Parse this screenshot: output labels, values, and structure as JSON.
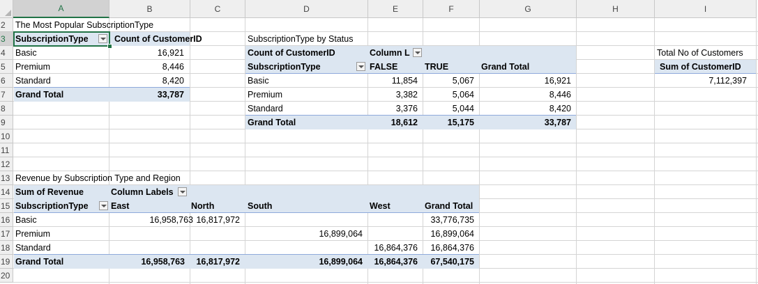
{
  "columns": [
    "A",
    "B",
    "C",
    "D",
    "E",
    "F",
    "G",
    "H",
    "I"
  ],
  "rows": [
    "2",
    "3",
    "4",
    "5",
    "6",
    "7",
    "8",
    "9",
    "10",
    "11",
    "12",
    "13",
    "14",
    "15",
    "16",
    "17",
    "18",
    "19",
    "20"
  ],
  "pivot1": {
    "title": "The Most Popular SubscriptionType",
    "header_row": "SubscriptionType",
    "header_value": "Count of CustomerID",
    "items": [
      {
        "label": "Basic",
        "value": "16,921"
      },
      {
        "label": "Premium",
        "value": "8,446"
      },
      {
        "label": "Standard",
        "value": "8,420"
      }
    ],
    "total_label": "Grand Total",
    "total_value": "33,787"
  },
  "pivot2": {
    "title": "SubscriptionType by Status",
    "values_label": "Count of CustomerID",
    "column_labels": "Column L",
    "row_header": "SubscriptionType",
    "col_false": "FALSE",
    "col_true": "TRUE",
    "col_total": "Grand Total",
    "items": [
      {
        "label": "Basic",
        "false": "11,854",
        "true": "5,067",
        "total": "16,921"
      },
      {
        "label": "Premium",
        "false": "3,382",
        "true": "5,064",
        "total": "8,446"
      },
      {
        "label": "Standard",
        "false": "3,376",
        "true": "5,044",
        "total": "8,420"
      }
    ],
    "total": {
      "label": "Grand Total",
      "false": "18,612",
      "true": "15,175",
      "total": "33,787"
    }
  },
  "pivot3": {
    "title": "Total No of Customers",
    "header": "Sum of CustomerID",
    "value": "7,112,397"
  },
  "pivot4": {
    "title": "Revenue by Subscription Type and Region",
    "values_label": "Sum of Revenue",
    "column_labels": "Column Labels",
    "row_header": "SubscriptionType",
    "cols": {
      "east": "East",
      "north": "North",
      "south": "South",
      "west": "West",
      "total": "Grand Total"
    },
    "items": [
      {
        "label": "Basic",
        "east": "16,958,763",
        "north": "16,817,972",
        "south": "",
        "west": "",
        "total": "33,776,735"
      },
      {
        "label": "Premium",
        "east": "",
        "north": "",
        "south": "16,899,064",
        "west": "",
        "total": "16,899,064"
      },
      {
        "label": "Standard",
        "east": "",
        "north": "",
        "south": "",
        "west": "16,864,376",
        "total": "16,864,376"
      }
    ],
    "total": {
      "label": "Grand Total",
      "east": "16,958,763",
      "north": "16,817,972",
      "south": "16,899,064",
      "west": "16,864,376",
      "total": "67,540,175"
    }
  }
}
